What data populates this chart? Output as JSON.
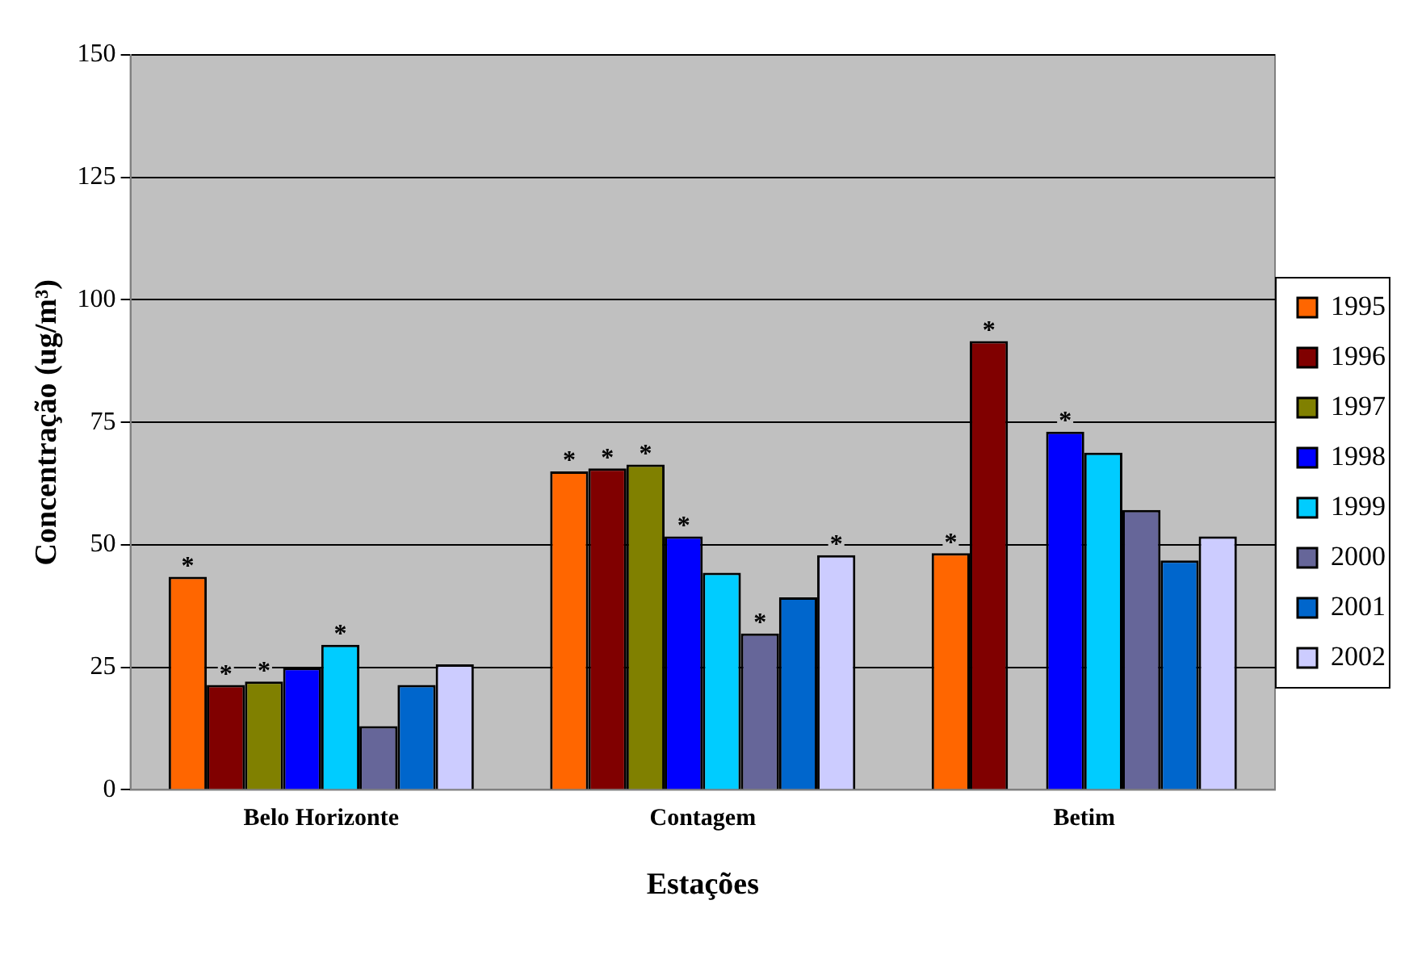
{
  "chart_data": {
    "type": "bar",
    "xlabel": "Estações",
    "ylabel": "Concentração (ug/m³)",
    "categories": [
      "Belo Horizonte",
      "Contagem",
      "Betim"
    ],
    "series": [
      {
        "name": "1995",
        "color": "#ff6600",
        "values": [
          43.5,
          65.0,
          48.3
        ],
        "value_labels": [
          "*",
          "*",
          "*"
        ]
      },
      {
        "name": "1996",
        "color": "#800000",
        "values": [
          21.4,
          65.6,
          91.6
        ],
        "value_labels": [
          "*",
          "*",
          "*"
        ]
      },
      {
        "name": "1997",
        "color": "#808000",
        "values": [
          22.1,
          66.4,
          null
        ],
        "value_labels": [
          "*",
          "*",
          null
        ]
      },
      {
        "name": "1998",
        "color": "#0000ff",
        "values": [
          24.9,
          51.7,
          73.1
        ],
        "value_labels": [
          null,
          "*",
          "*"
        ]
      },
      {
        "name": "1999",
        "color": "#00ccff",
        "values": [
          29.6,
          44.3,
          68.8
        ],
        "value_labels": [
          "*",
          null,
          null
        ]
      },
      {
        "name": "2000",
        "color": "#666699",
        "values": [
          13.0,
          31.9,
          57.1
        ],
        "value_labels": [
          null,
          "*",
          null
        ]
      },
      {
        "name": "2001",
        "color": "#0066cc",
        "values": [
          21.4,
          39.3,
          46.8
        ],
        "value_labels": [
          null,
          null,
          null
        ]
      },
      {
        "name": "2002",
        "color": "#ccccff",
        "values": [
          25.6,
          47.9,
          51.7
        ],
        "value_labels": [
          null,
          "*",
          null
        ]
      }
    ],
    "ylim": [
      0,
      150
    ],
    "yticks": [
      0,
      25,
      50,
      75,
      100,
      125,
      150
    ],
    "grid": "y",
    "legend": "right"
  }
}
